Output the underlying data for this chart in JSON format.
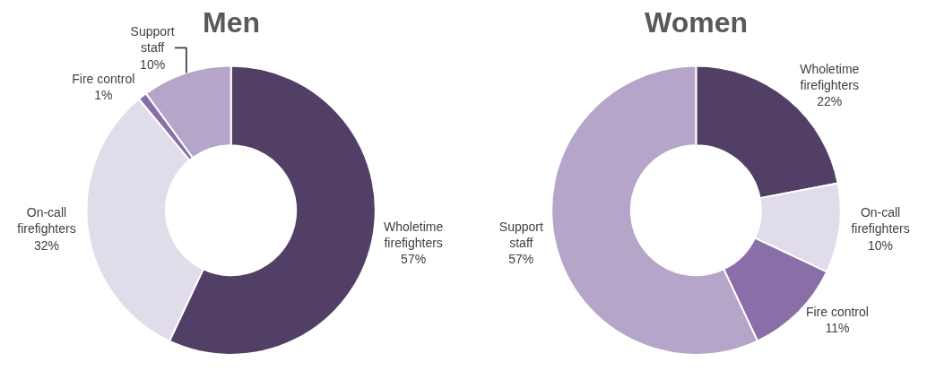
{
  "chart_data": [
    {
      "type": "donut",
      "title": "Men",
      "categories": [
        "Wholetime firefighters",
        "On-call firefighters",
        "Fire control",
        "Support staff"
      ],
      "values": [
        57,
        32,
        1,
        10
      ],
      "value_labels": [
        "57%",
        "32%",
        "1%",
        "10%"
      ],
      "colors": [
        "#523f66",
        "#e1dcea",
        "#8a6ea8",
        "#b5a5c9"
      ],
      "legend": false
    },
    {
      "type": "donut",
      "title": "Women",
      "categories": [
        "Wholetime firefighters",
        "On-call firefighters",
        "Fire control",
        "Support staff"
      ],
      "values": [
        22,
        10,
        11,
        57
      ],
      "value_labels": [
        "22%",
        "10%",
        "11%",
        "57%"
      ],
      "colors": [
        "#523f66",
        "#e1dcea",
        "#8a6ea8",
        "#b5a5c9"
      ],
      "legend": false
    }
  ]
}
